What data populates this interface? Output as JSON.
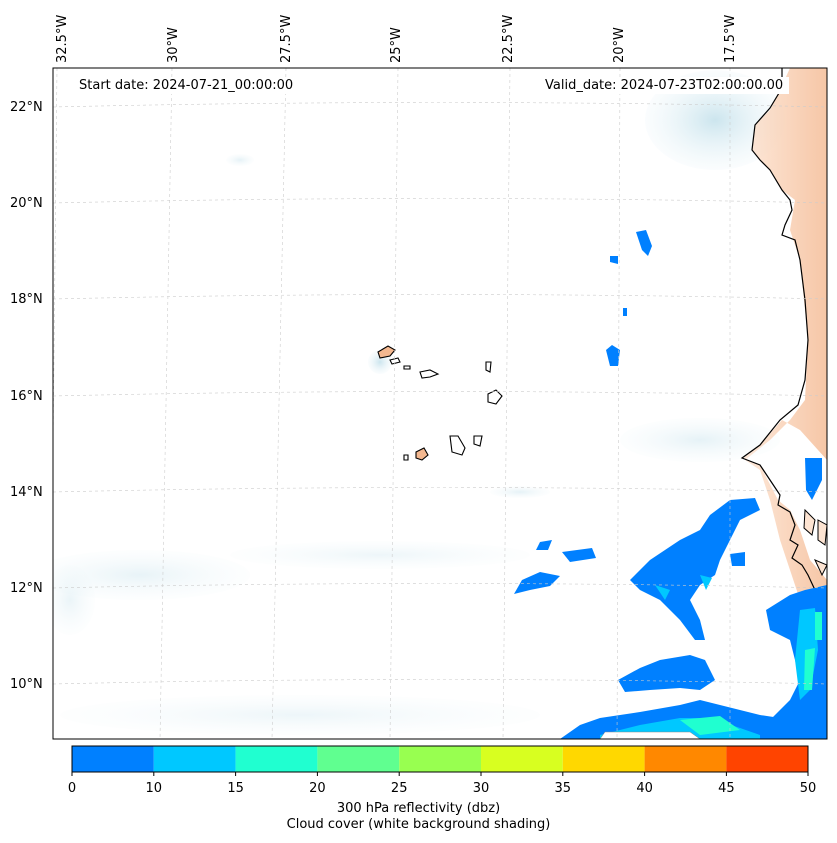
{
  "header": {
    "start_date": "Start date: 2024-07-21_00:00:00",
    "valid_date": "Valid_date: 2024-07-23T02:00:00.00"
  },
  "axes": {
    "lon_labels": [
      "32.5°W",
      "30°W",
      "27.5°W",
      "25°W",
      "22.5°W",
      "20°W",
      "17.5°W"
    ],
    "lat_labels": [
      "22°N",
      "20°N",
      "18°N",
      "16°N",
      "14°N",
      "12°N",
      "10°N"
    ]
  },
  "colorbar": {
    "ticks": [
      "0",
      "10",
      "15",
      "20",
      "25",
      "30",
      "35",
      "40",
      "45",
      "50"
    ],
    "colors": [
      "#0080ff",
      "#00c8ff",
      "#20ffd0",
      "#60ff90",
      "#98ff50",
      "#d8ff20",
      "#ffd800",
      "#ff8800",
      "#ff4400"
    ],
    "caption_line1": "300 hPa reflectivity (dbz)",
    "caption_line2": "Cloud cover (white background shading)"
  },
  "colors": {
    "land": "#f4b890",
    "cloud": "#d6ecf2",
    "refl_low": "#0080ff",
    "refl_mid": "#00c8ff",
    "refl_high": "#20ffd0"
  }
}
